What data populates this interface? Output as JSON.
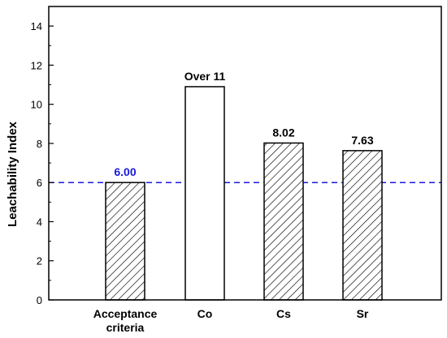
{
  "chart_data": {
    "type": "bar",
    "title": "",
    "xlabel": "",
    "ylabel": "Leachability Index",
    "ylim": [
      0,
      15
    ],
    "yticks": [
      0,
      2,
      4,
      6,
      8,
      10,
      12,
      14
    ],
    "grid": false,
    "categories": [
      {
        "lines": [
          "Acceptance",
          "criteria"
        ],
        "value": 6.0,
        "label": "6.00",
        "fill": "hatch",
        "label_color": "#1a1adb"
      },
      {
        "lines": [
          "Co"
        ],
        "value": 10.9,
        "label": "Over 11",
        "fill": "white",
        "label_color": "#000000"
      },
      {
        "lines": [
          "Cs"
        ],
        "value": 8.02,
        "label": "8.02",
        "fill": "hatch",
        "label_color": "#000000"
      },
      {
        "lines": [
          "Sr"
        ],
        "value": 7.63,
        "label": "7.63",
        "fill": "hatch",
        "label_color": "#000000"
      }
    ],
    "reference_line": {
      "value": 6.0,
      "style": "dashed",
      "color": "#1a1adb"
    }
  }
}
